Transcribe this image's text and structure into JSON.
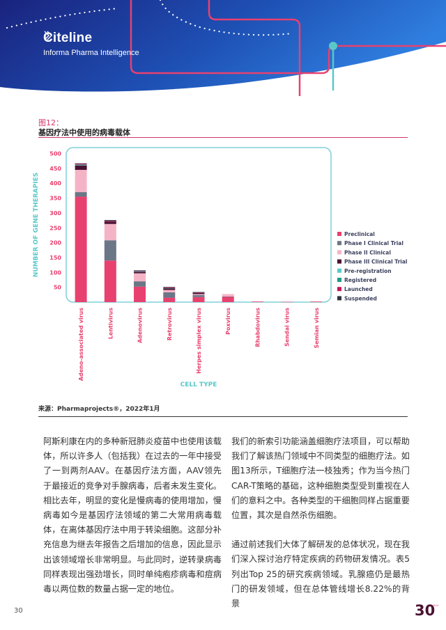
{
  "brand": {
    "name": "Citeline",
    "tagline": "Informa Pharma Intelligence"
  },
  "figure": {
    "label": "图12：",
    "title": "基因疗法中使用的病毒载体",
    "source": "来源：Pharmaprojects®，2022年1月"
  },
  "colors": {
    "Preclinical": "#e8416f",
    "Phase I Clinical Trial": "#6b7686",
    "Phase II Clinical": "#f5b4c6",
    "Phase III Clinical Trial": "#4a1232",
    "Pre-registration": "#5bc8c8",
    "Registered": "#1e9a8e",
    "Launched": "#c2185b",
    "Suspended": "#2d3440"
  },
  "chart_data": {
    "type": "bar",
    "stacked": true,
    "xlabel": "CELL TYPE",
    "ylabel": "NUMBER OF GENE THERAPIES",
    "ylim": [
      0,
      520
    ],
    "yticks": [
      50,
      100,
      150,
      200,
      250,
      300,
      350,
      400,
      450,
      500
    ],
    "legend_position": "right",
    "categories": [
      "Adeno-associated virus",
      "Lentivirus",
      "Adenovirus",
      "Retrovirus",
      "Herpes simplex virus",
      "Poxvirus",
      "Rhabdovirus",
      "Sendai virus",
      "Semian virus"
    ],
    "series": [
      {
        "name": "Preclinical",
        "values": [
          355,
          140,
          52,
          15,
          17,
          18,
          2,
          1,
          2
        ]
      },
      {
        "name": "Phase I Clinical Trial",
        "values": [
          15,
          68,
          18,
          18,
          7,
          1,
          0,
          0,
          0
        ]
      },
      {
        "name": "Phase II Clinical",
        "values": [
          75,
          55,
          27,
          8,
          3,
          8,
          1,
          1,
          1
        ]
      },
      {
        "name": "Phase III Clinical Trial",
        "values": [
          15,
          8,
          5,
          5,
          4,
          0,
          0,
          0,
          0
        ]
      },
      {
        "name": "Pre-registration",
        "values": [
          2,
          0,
          1,
          0,
          0,
          0,
          0,
          0,
          0
        ]
      },
      {
        "name": "Registered",
        "values": [
          1,
          0,
          1,
          1,
          0,
          0,
          0,
          0,
          0
        ]
      },
      {
        "name": "Launched",
        "values": [
          3,
          2,
          2,
          2,
          1,
          0,
          0,
          0,
          0
        ]
      },
      {
        "name": "Suspended",
        "values": [
          1,
          3,
          1,
          2,
          2,
          0,
          0,
          0,
          0
        ]
      }
    ]
  },
  "body": {
    "left": "阿斯利康在内的多种新冠肺炎疫苗中也使用该载体，所以许多人（包括我）在过去的一年中接受了一到两剂AAV。在基因疗法方面，AAV领先于最接近的竞争对手腺病毒，后者未发生变化。相比去年，明显的变化是慢病毒的使用增加，慢病毒如今是基因疗法领域的第二大常用病毒载体，在离体基因疗法中用于转染细胞。这部分补充信息为继去年报告之后增加的信息，因此显示出该领域增长非常明显。与此同时，逆转录病毒同样表现出强劲增长，同时单纯疱疹病毒和痘病毒以两位数的数量占据一定的地位。",
    "right_p1": "我们的新索引功能涵盖细胞疗法项目，可以帮助我们了解该热门领域中不同类型的细胞疗法。如图13所示，T细胞疗法一枝独秀；作为当今热门CAR-T策略的基础，这种细胞类型受到重视在人们的意料之中。各种类型的干细胞同样占据重要位置，其次是自然杀伤细胞。",
    "right_p2": "通过前述我们大体了解研发的总体状况，现在我们深入探讨治疗特定疾病的药物研发情况。表5列出Top 25的研究疾病领域。乳腺癌仍是最热门的研发领域，但在总体管线增长8.22%的背景"
  },
  "footer": {
    "page": "30",
    "logo": "30",
    "logo_sup": "YEARS"
  }
}
